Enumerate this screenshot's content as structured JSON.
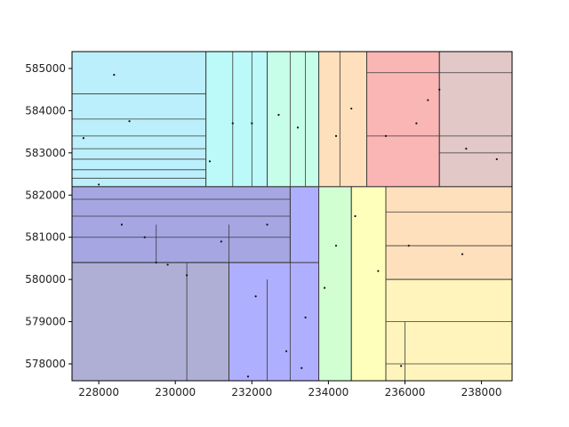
{
  "chart_data": {
    "type": "kd-partition",
    "title": "",
    "xlabel": "",
    "ylabel": "",
    "xlim": [
      227300,
      238800
    ],
    "ylim": [
      577600,
      585400
    ],
    "x_ticks": [
      228000,
      230000,
      232000,
      234000,
      236000,
      238000
    ],
    "y_ticks": [
      578000,
      579000,
      580000,
      581000,
      582000,
      583000,
      584000,
      585000
    ],
    "x_tick_labels": [
      "228000",
      "230000",
      "232000",
      "234000",
      "236000",
      "238000"
    ],
    "y_tick_labels": [
      "578000",
      "579000",
      "580000",
      "581000",
      "582000",
      "583000",
      "584000",
      "585000"
    ],
    "grid": false,
    "colors": {
      "lightblue": "#3fd1f5",
      "cyan": "#3ff0f0",
      "mint": "#5ffcc0",
      "slate": "#1a1a8a",
      "periwinkle": "#1a1aff",
      "indigo": "#0000b0",
      "green": "#7dff7d",
      "yellow": "#ffff3f",
      "gold": "#ffe03f",
      "orange": "#ffa53f",
      "salmon": "#ff7a5a",
      "red": "#f02a2a",
      "rose": "#c05050",
      "brown": "#b06060"
    },
    "regions": [
      {
        "x0": 227300,
        "x1": 230800,
        "y0": 582200,
        "y1": 585400,
        "color": "lightblue"
      },
      {
        "x0": 230800,
        "x1": 232400,
        "y0": 582200,
        "y1": 585400,
        "color": "cyan"
      },
      {
        "x0": 232400,
        "x1": 233750,
        "y0": 582200,
        "y1": 585400,
        "color": "mint"
      },
      {
        "x0": 233750,
        "x1": 235000,
        "y0": 582200,
        "y1": 585400,
        "color": "orange"
      },
      {
        "x0": 235000,
        "x1": 236900,
        "y0": 582200,
        "y1": 585400,
        "color": "red"
      },
      {
        "x0": 236900,
        "x1": 238800,
        "y0": 582200,
        "y1": 585400,
        "color": "brown"
      },
      {
        "x0": 227300,
        "x1": 231400,
        "y0": 577600,
        "y1": 580400,
        "color": "slate"
      },
      {
        "x0": 227300,
        "x1": 233000,
        "y0": 580400,
        "y1": 582200,
        "color": "indigo"
      },
      {
        "x0": 231400,
        "x1": 233750,
        "y0": 577600,
        "y1": 580400,
        "color": "periwinkle"
      },
      {
        "x0": 233000,
        "x1": 233750,
        "y0": 580400,
        "y1": 582200,
        "color": "periwinkle"
      },
      {
        "x0": 233750,
        "x1": 234600,
        "y0": 577600,
        "y1": 582200,
        "color": "green"
      },
      {
        "x0": 234600,
        "x1": 235500,
        "y0": 577600,
        "y1": 582200,
        "color": "yellow"
      },
      {
        "x0": 235500,
        "x1": 238800,
        "y0": 577600,
        "y1": 580000,
        "color": "gold"
      },
      {
        "x0": 235500,
        "x1": 238800,
        "y0": 580000,
        "y1": 582200,
        "color": "orange"
      }
    ],
    "splits": [
      {
        "x0": 227300,
        "x1": 230800,
        "y": 584400
      },
      {
        "x0": 227300,
        "x1": 230800,
        "y": 583800
      },
      {
        "x0": 227300,
        "x1": 230800,
        "y": 583400
      },
      {
        "x0": 227300,
        "x1": 230800,
        "y": 583100
      },
      {
        "x0": 227300,
        "x1": 230800,
        "y": 582850
      },
      {
        "x0": 227300,
        "x1": 230800,
        "y": 582600
      },
      {
        "x0": 227300,
        "x1": 230800,
        "y": 582400
      },
      {
        "x": 230800,
        "y0": 582200,
        "y1": 585400
      },
      {
        "x": 231500,
        "y0": 582200,
        "y1": 585400
      },
      {
        "x": 232000,
        "y0": 582200,
        "y1": 585400
      },
      {
        "x": 232400,
        "y0": 582200,
        "y1": 585400
      },
      {
        "x": 233000,
        "y0": 582200,
        "y1": 585400
      },
      {
        "x": 233400,
        "y0": 582200,
        "y1": 585400
      },
      {
        "x": 233750,
        "y0": 577600,
        "y1": 585400
      },
      {
        "x": 234300,
        "y0": 582200,
        "y1": 585400
      },
      {
        "x": 235000,
        "y0": 582200,
        "y1": 585400
      },
      {
        "x": 236900,
        "y0": 582200,
        "y1": 585400
      },
      {
        "x0": 235000,
        "x1": 238800,
        "y": 584900
      },
      {
        "x0": 235000,
        "x1": 238800,
        "y": 583400
      },
      {
        "x0": 236900,
        "x1": 238800,
        "y": 583000
      },
      {
        "x0": 227300,
        "x1": 238800,
        "y": 582200
      },
      {
        "x0": 227300,
        "x1": 233000,
        "y": 581900
      },
      {
        "x0": 227300,
        "x1": 233000,
        "y": 581500
      },
      {
        "x0": 227300,
        "x1": 233000,
        "y": 581000
      },
      {
        "x0": 227300,
        "x1": 233000,
        "y": 580400
      },
      {
        "x": 229500,
        "y0": 580400,
        "y1": 581300
      },
      {
        "x": 230300,
        "y0": 577600,
        "y1": 580400
      },
      {
        "x": 231400,
        "y0": 577600,
        "y1": 581300
      },
      {
        "x": 232400,
        "y0": 577600,
        "y1": 580000
      },
      {
        "x": 233000,
        "y0": 577600,
        "y1": 582200
      },
      {
        "x": 234600,
        "y0": 577600,
        "y1": 582200
      },
      {
        "x": 235500,
        "y0": 577600,
        "y1": 582200
      },
      {
        "x0": 235500,
        "x1": 238800,
        "y": 581600
      },
      {
        "x0": 235500,
        "x1": 238800,
        "y": 580800
      },
      {
        "x0": 235500,
        "x1": 238800,
        "y": 580000
      },
      {
        "x0": 235500,
        "x1": 238800,
        "y": 579000
      },
      {
        "x0": 235500,
        "x1": 238800,
        "y": 578000
      },
      {
        "x": 236000,
        "y0": 577600,
        "y1": 579000
      }
    ],
    "points": [
      [
        228400,
        584850
      ],
      [
        228800,
        583750
      ],
      [
        227600,
        583350
      ],
      [
        230900,
        582800
      ],
      [
        231500,
        583700
      ],
      [
        232000,
        583700
      ],
      [
        232700,
        583900
      ],
      [
        233200,
        583600
      ],
      [
        234200,
        583400
      ],
      [
        234600,
        584050
      ],
      [
        235500,
        583400
      ],
      [
        236300,
        583700
      ],
      [
        236900,
        584500
      ],
      [
        237600,
        583100
      ],
      [
        238400,
        582850
      ],
      [
        236600,
        584250
      ],
      [
        228000,
        582250
      ],
      [
        228600,
        581300
      ],
      [
        229200,
        581000
      ],
      [
        229500,
        580400
      ],
      [
        230300,
        580100
      ],
      [
        231200,
        580900
      ],
      [
        232400,
        581300
      ],
      [
        232100,
        579600
      ],
      [
        232900,
        578300
      ],
      [
        233300,
        577900
      ],
      [
        233400,
        579100
      ],
      [
        233900,
        579800
      ],
      [
        234200,
        580800
      ],
      [
        234700,
        581500
      ],
      [
        235300,
        580200
      ],
      [
        236100,
        580800
      ],
      [
        237500,
        580600
      ],
      [
        235900,
        577950
      ],
      [
        231900,
        577700
      ],
      [
        229800,
        580350
      ]
    ]
  }
}
